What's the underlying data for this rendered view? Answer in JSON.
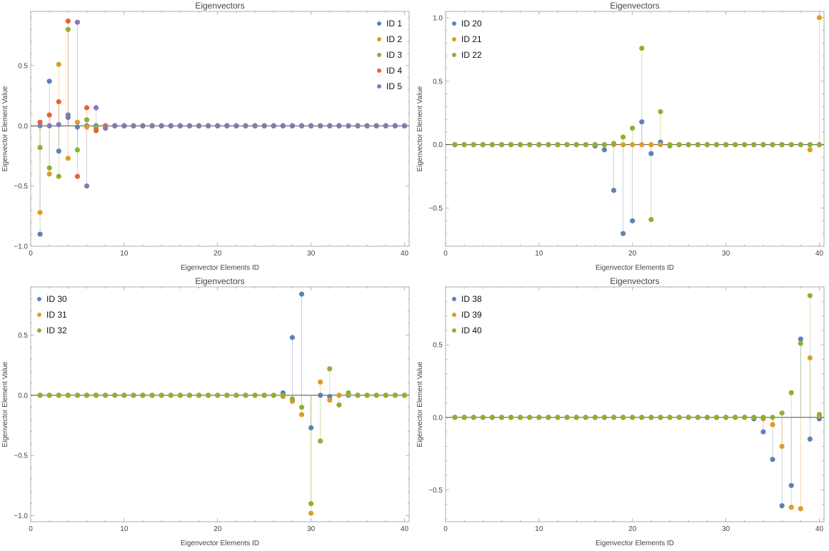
{
  "chart_data": [
    {
      "type": "scatter",
      "title": "Eigenvectors",
      "xlabel": "Eigenvector Elements ID",
      "ylabel": "Eigenvector Element Value",
      "xlim": [
        0,
        40.5
      ],
      "ylim": [
        -1.0,
        0.95
      ],
      "xticks": [
        "0",
        "10",
        "20",
        "30",
        "40"
      ],
      "yticks": [
        "−1.0",
        "−0.5",
        "0.0",
        "0.5"
      ],
      "ytick_values": [
        -1.0,
        -0.5,
        0.0,
        0.5
      ],
      "legend_position": "top-right",
      "grid": false,
      "series": [
        {
          "name": "ID 1",
          "color": "#5e81b5",
          "values": [
            -0.9,
            0.37,
            -0.21,
            0.07,
            -0.01,
            0,
            0,
            0,
            0,
            0,
            0,
            0,
            0,
            0,
            0,
            0,
            0,
            0,
            0,
            0,
            0,
            0,
            0,
            0,
            0,
            0,
            0,
            0,
            0,
            0,
            0,
            0,
            0,
            0,
            0,
            0,
            0,
            0,
            0,
            0
          ]
        },
        {
          "name": "ID 2",
          "color": "#e19c24",
          "values": [
            -0.72,
            -0.4,
            0.51,
            -0.27,
            0.03,
            -0.01,
            -0.02,
            0,
            0,
            0,
            0,
            0,
            0,
            0,
            0,
            0,
            0,
            0,
            0,
            0,
            0,
            0,
            0,
            0,
            0,
            0,
            0,
            0,
            0,
            0,
            0,
            0,
            0,
            0,
            0,
            0,
            0,
            0,
            0,
            0
          ]
        },
        {
          "name": "ID 3",
          "color": "#8fb032",
          "values": [
            -0.18,
            -0.35,
            -0.42,
            0.8,
            -0.2,
            0.05,
            -0.01,
            0,
            0,
            0,
            0,
            0,
            0,
            0,
            0,
            0,
            0,
            0,
            0,
            0,
            0,
            0,
            0,
            0,
            0,
            0,
            0,
            0,
            0,
            0,
            0,
            0,
            0,
            0,
            0,
            0,
            0,
            0,
            0,
            0
          ]
        },
        {
          "name": "ID 4",
          "color": "#eb6235",
          "values": [
            0.03,
            0.09,
            0.2,
            0.87,
            -0.42,
            0.15,
            -0.04,
            0,
            0,
            0,
            0,
            0,
            0,
            0,
            0,
            0,
            0,
            0,
            0,
            0,
            0,
            0,
            0,
            0,
            0,
            0,
            0,
            0,
            0,
            0,
            0,
            0,
            0,
            0,
            0,
            0,
            0,
            0,
            0,
            0
          ]
        },
        {
          "name": "ID 5",
          "color": "#8778b3",
          "values": [
            0.0,
            0.0,
            0.01,
            0.09,
            0.86,
            -0.5,
            0.15,
            -0.02,
            0,
            0,
            0,
            0,
            0,
            0,
            0,
            0,
            0,
            0,
            0,
            0,
            0,
            0,
            0,
            0,
            0,
            0,
            0,
            0,
            0,
            0,
            0,
            0,
            0,
            0,
            0,
            0,
            0,
            0,
            0,
            0
          ]
        }
      ]
    },
    {
      "type": "scatter",
      "title": "Eigenvectors",
      "xlabel": "Eigenvector Elements ID",
      "ylabel": "Eigenvector Element Value",
      "xlim": [
        0,
        40.5
      ],
      "ylim": [
        -0.8,
        1.05
      ],
      "xticks": [
        "0",
        "10",
        "20",
        "30",
        "40"
      ],
      "yticks": [
        "−0.5",
        "0.0",
        "0.5",
        "1.0"
      ],
      "ytick_values": [
        -0.5,
        0.0,
        0.5,
        1.0
      ],
      "legend_position": "top-left",
      "grid": false,
      "series": [
        {
          "name": "ID 20",
          "color": "#5e81b5",
          "values": [
            0,
            0,
            0,
            0,
            0,
            0,
            0,
            0,
            0,
            0,
            0,
            0,
            0,
            0,
            0,
            -0.01,
            -0.04,
            -0.36,
            -0.7,
            -0.6,
            0.18,
            -0.07,
            0.02,
            0,
            0,
            0,
            0,
            0,
            0,
            0,
            0,
            0,
            0,
            0,
            0,
            0,
            0,
            0,
            0,
            0
          ]
        },
        {
          "name": "ID 21",
          "color": "#e19c24",
          "values": [
            0,
            0,
            0,
            0,
            0,
            0,
            0,
            0,
            0,
            0,
            0,
            0,
            0,
            0,
            0,
            0,
            0,
            0,
            0,
            0,
            0,
            0,
            0,
            0,
            0,
            0,
            0,
            0,
            0,
            0,
            0,
            0,
            0,
            0,
            0,
            0,
            0,
            0,
            -0.04,
            1.0
          ]
        },
        {
          "name": "ID 22",
          "color": "#8fb032",
          "values": [
            0,
            0,
            0,
            0,
            0,
            0,
            0,
            0,
            0,
            0,
            0,
            0,
            0,
            0,
            0,
            0,
            0,
            0.01,
            0.06,
            0.13,
            0.76,
            -0.59,
            0.26,
            -0.01,
            0,
            0,
            0,
            0,
            0,
            0,
            0,
            0,
            0,
            0,
            0,
            0,
            0,
            0,
            0,
            0
          ]
        }
      ]
    },
    {
      "type": "scatter",
      "title": "Eigenvectors",
      "xlabel": "Eigenvector Elements ID",
      "ylabel": "Eigenvector Element Value",
      "xlim": [
        0,
        40.5
      ],
      "ylim": [
        -1.05,
        0.9
      ],
      "xticks": [
        "0",
        "10",
        "20",
        "30",
        "40"
      ],
      "yticks": [
        "−1.0",
        "−0.5",
        "0.0",
        "0.5"
      ],
      "ytick_values": [
        -1.0,
        -0.5,
        0.0,
        0.5
      ],
      "legend_position": "top-left",
      "grid": false,
      "series": [
        {
          "name": "ID 30",
          "color": "#5e81b5",
          "values": [
            0,
            0,
            0,
            0,
            0,
            0,
            0,
            0,
            0,
            0,
            0,
            0,
            0,
            0,
            0,
            0,
            0,
            0,
            0,
            0,
            0,
            0,
            0,
            0,
            0,
            0,
            0.02,
            0.48,
            0.84,
            -0.27,
            0.0,
            -0.01,
            0,
            0,
            0,
            0,
            0,
            0,
            0,
            0
          ]
        },
        {
          "name": "ID 31",
          "color": "#e19c24",
          "values": [
            0,
            0,
            0,
            0,
            0,
            0,
            0,
            0,
            0,
            0,
            0,
            0,
            0,
            0,
            0,
            0,
            0,
            0,
            0,
            0,
            0,
            0,
            0,
            0,
            0,
            0,
            -0.01,
            -0.05,
            -0.16,
            -0.98,
            0.11,
            -0.04,
            0.0,
            0.01,
            0,
            0,
            0,
            0,
            0,
            0
          ]
        },
        {
          "name": "ID 32",
          "color": "#8fb032",
          "values": [
            0,
            0,
            0,
            0,
            0,
            0,
            0,
            0,
            0,
            0,
            0,
            0,
            0,
            0,
            0,
            0,
            0,
            0,
            0,
            0,
            0,
            0,
            0,
            0,
            0,
            0,
            0,
            -0.03,
            -0.1,
            -0.9,
            -0.38,
            0.22,
            -0.08,
            0.02,
            0,
            0,
            0,
            0,
            0,
            0
          ]
        }
      ]
    },
    {
      "type": "scatter",
      "title": "Eigenvectors",
      "xlabel": "Eigenvector Elements ID",
      "ylabel": "Eigenvector Element Value",
      "xlim": [
        0,
        40.5
      ],
      "ylim": [
        -0.72,
        0.9
      ],
      "xticks": [
        "0",
        "10",
        "20",
        "30",
        "40"
      ],
      "yticks": [
        "−0.5",
        "0.0",
        "0.5"
      ],
      "ytick_values": [
        -0.5,
        0.0,
        0.5
      ],
      "legend_position": "top-left",
      "grid": false,
      "series": [
        {
          "name": "ID 38",
          "color": "#5e81b5",
          "values": [
            0,
            0,
            0,
            0,
            0,
            0,
            0,
            0,
            0,
            0,
            0,
            0,
            0,
            0,
            0,
            0,
            0,
            0,
            0,
            0,
            0,
            0,
            0,
            0,
            0,
            0,
            0,
            0,
            0,
            0,
            0,
            0,
            -0.01,
            -0.1,
            -0.29,
            -0.61,
            -0.47,
            0.54,
            -0.15,
            -0.01
          ]
        },
        {
          "name": "ID 39",
          "color": "#e19c24",
          "values": [
            0,
            0,
            0,
            0,
            0,
            0,
            0,
            0,
            0,
            0,
            0,
            0,
            0,
            0,
            0,
            0,
            0,
            0,
            0,
            0,
            0,
            0,
            0,
            0,
            0,
            0,
            0,
            0,
            0,
            0,
            0,
            0,
            0,
            -0.01,
            -0.05,
            -0.2,
            -0.62,
            -0.63,
            0.41,
            0.01
          ]
        },
        {
          "name": "ID 40",
          "color": "#8fb032",
          "values": [
            0,
            0,
            0,
            0,
            0,
            0,
            0,
            0,
            0,
            0,
            0,
            0,
            0,
            0,
            0,
            0,
            0,
            0,
            0,
            0,
            0,
            0,
            0,
            0,
            0,
            0,
            0,
            0,
            0,
            0,
            0,
            0,
            0,
            0.0,
            0.0,
            0.03,
            0.17,
            0.51,
            0.84,
            0.02
          ]
        }
      ]
    }
  ]
}
